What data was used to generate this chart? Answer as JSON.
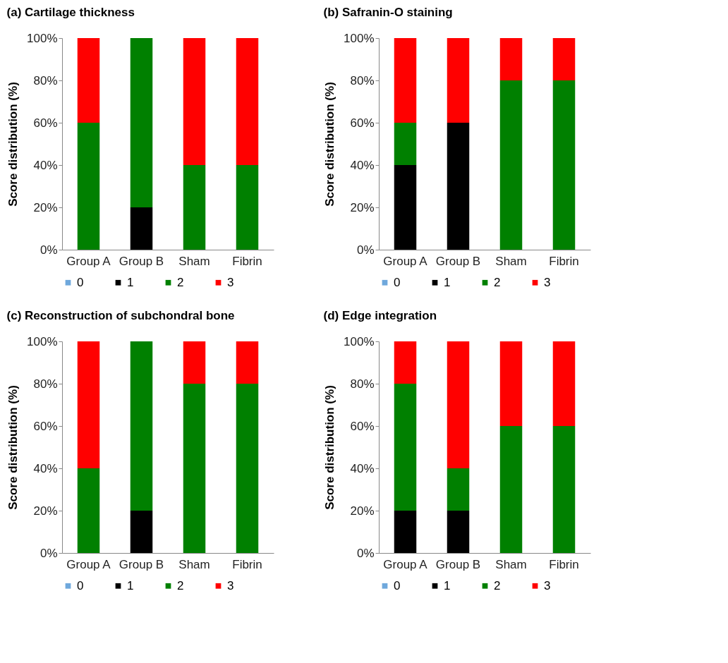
{
  "chart_data": [
    {
      "type": "bar",
      "title": "(a) Cartilage thickness",
      "ylabel": "Score distribution (%)",
      "categories": [
        "Group A",
        "Group B",
        "Sham",
        "Fibrin"
      ],
      "stacked": true,
      "legend": "bottom",
      "grid": false,
      "ylim": [
        0,
        100
      ],
      "yticks": [
        {
          "value": 0,
          "label": "0%"
        },
        {
          "value": 20,
          "label": "20%"
        },
        {
          "value": 40,
          "label": "40%"
        },
        {
          "value": 60,
          "label": "60%"
        },
        {
          "value": 80,
          "label": "80%"
        },
        {
          "value": 100,
          "label": "100%"
        }
      ],
      "series": [
        {
          "name": "0",
          "color": "#6fa8dc",
          "values": [
            0,
            0,
            0,
            0
          ]
        },
        {
          "name": "1",
          "color": "#000000",
          "values": [
            0,
            20,
            0,
            0
          ]
        },
        {
          "name": "2",
          "color": "#008000",
          "values": [
            60,
            80,
            40,
            40
          ]
        },
        {
          "name": "3",
          "color": "#ff0000",
          "values": [
            40,
            0,
            60,
            60
          ]
        }
      ]
    },
    {
      "type": "bar",
      "title": "(b) Safranin-O staining",
      "ylabel": "Score distribution (%)",
      "categories": [
        "Group A",
        "Group B",
        "Sham",
        "Fibrin"
      ],
      "stacked": true,
      "legend": "bottom",
      "grid": false,
      "ylim": [
        0,
        100
      ],
      "yticks": [
        {
          "value": 0,
          "label": "0%"
        },
        {
          "value": 20,
          "label": "20%"
        },
        {
          "value": 40,
          "label": "40%"
        },
        {
          "value": 60,
          "label": "60%"
        },
        {
          "value": 80,
          "label": "80%"
        },
        {
          "value": 100,
          "label": "100%"
        }
      ],
      "series": [
        {
          "name": "0",
          "color": "#6fa8dc",
          "values": [
            0,
            0,
            0,
            0
          ]
        },
        {
          "name": "1",
          "color": "#000000",
          "values": [
            40,
            60,
            0,
            0
          ]
        },
        {
          "name": "2",
          "color": "#008000",
          "values": [
            20,
            0,
            80,
            80
          ]
        },
        {
          "name": "3",
          "color": "#ff0000",
          "values": [
            40,
            40,
            20,
            20
          ]
        }
      ]
    },
    {
      "type": "bar",
      "title": "(c) Reconstruction of subchondral bone",
      "ylabel": "Score distribution (%)",
      "categories": [
        "Group A",
        "Group B",
        "Sham",
        "Fibrin"
      ],
      "stacked": true,
      "legend": "bottom",
      "grid": false,
      "ylim": [
        0,
        100
      ],
      "yticks": [
        {
          "value": 0,
          "label": "0%"
        },
        {
          "value": 20,
          "label": "20%"
        },
        {
          "value": 40,
          "label": "40%"
        },
        {
          "value": 60,
          "label": "60%"
        },
        {
          "value": 80,
          "label": "80%"
        },
        {
          "value": 100,
          "label": "100%"
        }
      ],
      "series": [
        {
          "name": "0",
          "color": "#6fa8dc",
          "values": [
            0,
            0,
            0,
            0
          ]
        },
        {
          "name": "1",
          "color": "#000000",
          "values": [
            0,
            20,
            0,
            0
          ]
        },
        {
          "name": "2",
          "color": "#008000",
          "values": [
            40,
            80,
            80,
            80
          ]
        },
        {
          "name": "3",
          "color": "#ff0000",
          "values": [
            60,
            0,
            20,
            20
          ]
        }
      ]
    },
    {
      "type": "bar",
      "title": "(d) Edge integration",
      "ylabel": "Score distribution (%)",
      "categories": [
        "Group A",
        "Group B",
        "Sham",
        "Fibrin"
      ],
      "stacked": true,
      "legend": "bottom",
      "grid": false,
      "ylim": [
        0,
        100
      ],
      "yticks": [
        {
          "value": 0,
          "label": "0%"
        },
        {
          "value": 20,
          "label": "20%"
        },
        {
          "value": 40,
          "label": "40%"
        },
        {
          "value": 60,
          "label": "60%"
        },
        {
          "value": 80,
          "label": "80%"
        },
        {
          "value": 100,
          "label": "100%"
        }
      ],
      "series": [
        {
          "name": "0",
          "color": "#6fa8dc",
          "values": [
            0,
            0,
            0,
            0
          ]
        },
        {
          "name": "1",
          "color": "#000000",
          "values": [
            20,
            20,
            0,
            0
          ]
        },
        {
          "name": "2",
          "color": "#008000",
          "values": [
            60,
            20,
            60,
            60
          ]
        },
        {
          "name": "3",
          "color": "#ff0000",
          "values": [
            20,
            60,
            40,
            40
          ]
        }
      ]
    }
  ]
}
